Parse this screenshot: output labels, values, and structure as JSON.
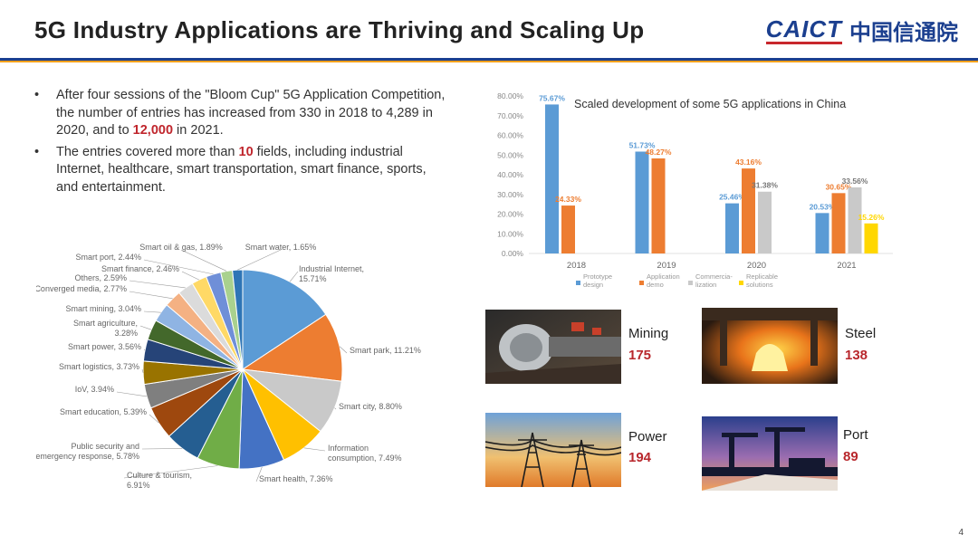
{
  "header": {
    "title": "5G Industry Applications are Thriving and Scaling Up",
    "logo_en": "CAICT",
    "logo_cn": "中国信通院"
  },
  "bullets": [
    {
      "pre": "After four sessions of the \"Bloom Cup\" 5G Application Competition, the number of entries has increased from 330 in 2018 to 4,289 in 2020, and to ",
      "highlight": "12,000",
      "post": " in 2021."
    },
    {
      "pre": "The entries covered more than ",
      "highlight": "10",
      "post": " fields, including industrial Internet, healthcare, smart transportation, smart finance, sports, and entertainment."
    }
  ],
  "chart_data": [
    {
      "type": "pie",
      "slices": [
        {
          "label": "Industrial Internet, 15.71%",
          "value": 15.71,
          "color": "#5b9bd5"
        },
        {
          "label": "Smart park, 11.21%",
          "value": 11.21,
          "color": "#ed7d31"
        },
        {
          "label": "Smart city, 8.80%",
          "value": 8.8,
          "color": "#c9c9c9"
        },
        {
          "label": "Information consumption, 7.49%",
          "value": 7.49,
          "color": "#ffc000"
        },
        {
          "label": "Smart health, 7.36%",
          "value": 7.36,
          "color": "#4472c4"
        },
        {
          "label": "Culture & tourism, 6.91%",
          "value": 6.91,
          "color": "#70ad47"
        },
        {
          "label": "Public security and emergency response, 5.78%",
          "value": 5.78,
          "color": "#255e91"
        },
        {
          "label": "Smart education, 5.39%",
          "value": 5.39,
          "color": "#9e480e"
        },
        {
          "label": "IoV, 3.94%",
          "value": 3.94,
          "color": "#7f7f7f"
        },
        {
          "label": "Smart logistics, 3.73%",
          "value": 3.73,
          "color": "#997300"
        },
        {
          "label": "Smart power, 3.56%",
          "value": 3.56,
          "color": "#264478"
        },
        {
          "label": "Smart agriculture, 3.28%",
          "value": 3.28,
          "color": "#43682b"
        },
        {
          "label": "Smart mining, 3.04%",
          "value": 3.04,
          "color": "#8fb4e3"
        },
        {
          "label": "Converged media, 2.77%",
          "value": 2.77,
          "color": "#f4b183"
        },
        {
          "label": "Others, 2.59%",
          "value": 2.59,
          "color": "#dbdbdb"
        },
        {
          "label": "Smart finance, 2.46%",
          "value": 2.46,
          "color": "#ffd966"
        },
        {
          "label": "Smart port, 2.44%",
          "value": 2.44,
          "color": "#6f8fd8"
        },
        {
          "label": "Smart oil & gas, 1.89%",
          "value": 1.89,
          "color": "#a9d18e"
        },
        {
          "label": "Smart water, 1.65%",
          "value": 1.65,
          "color": "#2e75b6"
        }
      ]
    },
    {
      "type": "bar",
      "title": "Scaled development of some 5G applications in China",
      "categories": [
        "2018",
        "2019",
        "2020",
        "2021"
      ],
      "ylim": [
        0,
        80
      ],
      "yticks": [
        "0.00%",
        "10.00%",
        "20.00%",
        "30.00%",
        "40.00%",
        "50.00%",
        "60.00%",
        "70.00%",
        "80.00%"
      ],
      "series": [
        {
          "name": "Prototype design",
          "color": "#5b9bd5",
          "values": [
            75.67,
            51.73,
            25.46,
            20.53
          ],
          "labels": [
            "75.67%",
            "51.73%",
            "25.46%",
            "20.53%"
          ]
        },
        {
          "name": "Application demo",
          "color": "#ed7d31",
          "values": [
            24.33,
            48.27,
            43.16,
            30.65
          ],
          "labels": [
            "24.33%",
            "48.27%",
            "43.16%",
            "30.65%"
          ]
        },
        {
          "name": "Commercialization",
          "color": "#c9c9c9",
          "values": [
            null,
            null,
            31.38,
            33.56
          ],
          "labels": [
            "",
            "",
            "31.38%",
            "33.56%"
          ]
        },
        {
          "name": "Replicable solutions",
          "color": "#ffd700",
          "values": [
            null,
            null,
            null,
            15.26
          ],
          "labels": [
            "",
            "",
            "",
            "15.26%"
          ]
        }
      ],
      "legend_position": "bottom"
    }
  ],
  "industries": [
    {
      "name": "Mining",
      "value": "175"
    },
    {
      "name": "Steel",
      "value": "138"
    },
    {
      "name": "Power",
      "value": "194"
    },
    {
      "name": "Port",
      "value": "89"
    }
  ],
  "page_number": "4"
}
